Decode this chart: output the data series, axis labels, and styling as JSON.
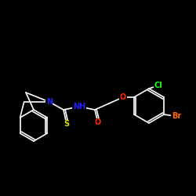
{
  "bg": "#000000",
  "bond_color": "#ffffff",
  "atom_colors": {
    "O": "#ff2200",
    "N": "#2222ff",
    "S": "#dddd00",
    "Cl": "#22ff22",
    "Br": "#ff6600",
    "C": "#ffffff"
  },
  "font_size": 7,
  "bond_width": 1.2
}
